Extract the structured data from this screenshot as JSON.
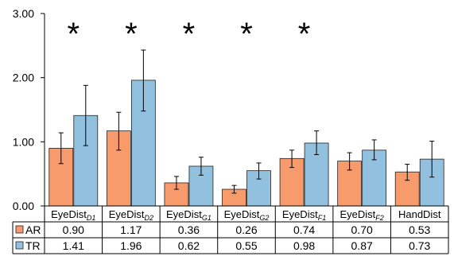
{
  "chart_data": {
    "type": "bar",
    "categories": [
      {
        "base": "EyeDist",
        "sub": "D1"
      },
      {
        "base": "EyeDist",
        "sub": "D2"
      },
      {
        "base": "EyeDist",
        "sub": "G1"
      },
      {
        "base": "EyeDist",
        "sub": "G2"
      },
      {
        "base": "EyeDist",
        "sub": "F1"
      },
      {
        "base": "EyeDist",
        "sub": "F2"
      },
      {
        "base": "HandDist",
        "sub": ""
      }
    ],
    "series": [
      {
        "name": "AR",
        "color": "#F79B6D",
        "values": [
          0.9,
          1.17,
          0.36,
          0.26,
          0.74,
          0.7,
          0.53
        ],
        "value_labels": [
          "0.90",
          "1.17",
          "0.36",
          "0.26",
          "0.74",
          "0.70",
          "0.53"
        ],
        "err_low": [
          0.66,
          0.87,
          0.26,
          0.2,
          0.6,
          0.56,
          0.4
        ],
        "err_high": [
          1.14,
          1.46,
          0.46,
          0.32,
          0.87,
          0.83,
          0.65
        ]
      },
      {
        "name": "TR",
        "color": "#92C0DF",
        "values": [
          1.41,
          1.96,
          0.62,
          0.55,
          0.98,
          0.87,
          0.73
        ],
        "value_labels": [
          "1.41",
          "1.96",
          "0.62",
          "0.55",
          "0.98",
          "0.87",
          "0.73"
        ],
        "err_low": [
          0.94,
          1.48,
          0.48,
          0.42,
          0.8,
          0.72,
          0.45
        ],
        "err_high": [
          1.88,
          2.43,
          0.76,
          0.67,
          1.17,
          1.03,
          1.01
        ]
      }
    ],
    "significant": [
      true,
      true,
      true,
      true,
      true,
      false,
      false
    ],
    "significance_marker": "*",
    "ylim": [
      0,
      3
    ],
    "yticks": [
      "0.00",
      "1.00",
      "2.00",
      "3.00"
    ],
    "ytick_values": [
      0,
      1,
      2,
      3
    ],
    "grid": false,
    "legend": "data-table-left",
    "title": "",
    "xlabel": "",
    "ylabel": ""
  }
}
